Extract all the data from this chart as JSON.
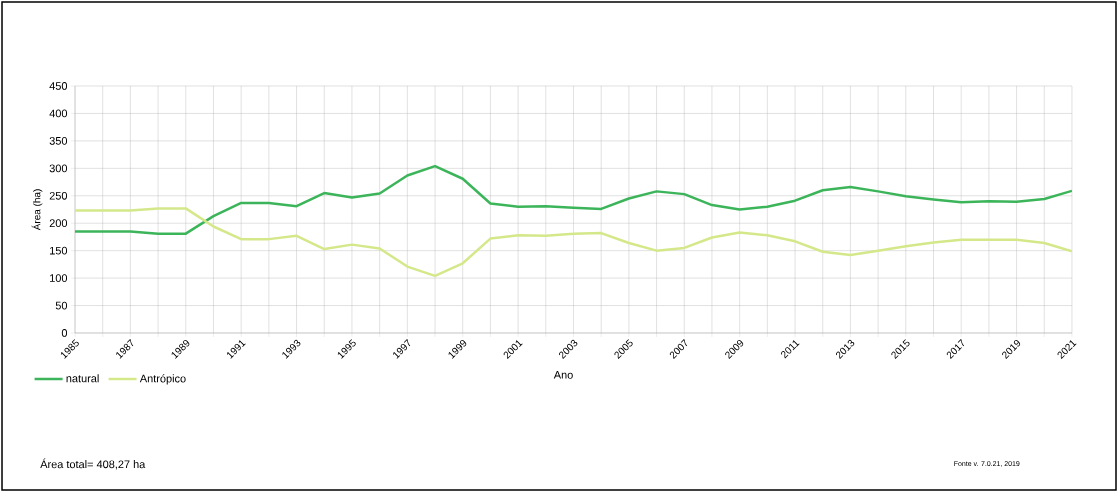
{
  "chart_data": {
    "type": "line",
    "xlabel": "Ano",
    "ylabel": "Área (ha)",
    "x": [
      1985,
      1986,
      1987,
      1988,
      1989,
      1990,
      1991,
      1992,
      1993,
      1994,
      1995,
      1996,
      1997,
      1998,
      1999,
      2000,
      2001,
      2002,
      2003,
      2004,
      2005,
      2006,
      2007,
      2008,
      2009,
      2010,
      2011,
      2012,
      2013,
      2014,
      2015,
      2016,
      2017,
      2018,
      2019,
      2020,
      2021
    ],
    "series": [
      {
        "name": "natural",
        "color": "#3cb55a",
        "values": [
          185,
          185,
          185,
          181,
          181,
          213,
          237,
          237,
          231,
          255,
          247,
          254,
          287,
          304,
          281,
          236,
          230,
          231,
          228,
          226,
          245,
          258,
          253,
          233,
          225,
          230,
          241,
          260,
          266,
          258,
          249,
          243,
          238,
          240,
          239,
          244,
          259
        ]
      },
      {
        "name": "Antrópico",
        "color": "#d4e88a",
        "values": [
          223,
          223,
          223,
          227,
          227,
          194,
          171,
          171,
          177,
          153,
          161,
          154,
          121,
          104,
          127,
          172,
          178,
          177,
          181,
          182,
          164,
          150,
          155,
          174,
          183,
          178,
          167,
          148,
          142,
          150,
          158,
          165,
          170,
          170,
          170,
          164,
          149
        ]
      }
    ],
    "xlim": [
      1985,
      2021
    ],
    "xticks": [
      1985,
      {
        "value": 1986,
        "label": null
      },
      1987,
      {
        "value": 1988,
        "label": null
      },
      1989,
      {
        "value": 1990,
        "label": null
      },
      1991,
      {
        "value": 1992,
        "label": null
      },
      1993,
      {
        "value": 1994,
        "label": null
      },
      1995,
      {
        "value": 1996,
        "label": null
      },
      1997,
      {
        "value": 1998,
        "label": null
      },
      1999,
      {
        "value": 2000,
        "label": null
      },
      2001,
      {
        "value": 2002,
        "label": null
      },
      2003,
      {
        "value": 2004,
        "label": null
      },
      2005,
      {
        "value": 2006,
        "label": null
      },
      2007,
      {
        "value": 2008,
        "label": null
      },
      2009,
      {
        "value": 2010,
        "label": null
      },
      2011,
      {
        "value": 2012,
        "label": null
      },
      2013,
      {
        "value": 2014,
        "label": null
      },
      2015,
      {
        "value": 2016,
        "label": null
      },
      2017,
      {
        "value": 2018,
        "label": null
      },
      2019,
      {
        "value": 2020,
        "label": null
      },
      2021
    ],
    "ylim": [
      0,
      450
    ],
    "yticks": [
      0,
      50,
      100,
      150,
      200,
      250,
      300,
      350,
      400,
      450
    ],
    "grid": true,
    "legend": "bottom left",
    "marker": "none",
    "line_style": "solid",
    "annotations": [
      "Área total= 408,27 ha",
      "Fonte v. 7.0.21, 2019"
    ]
  }
}
